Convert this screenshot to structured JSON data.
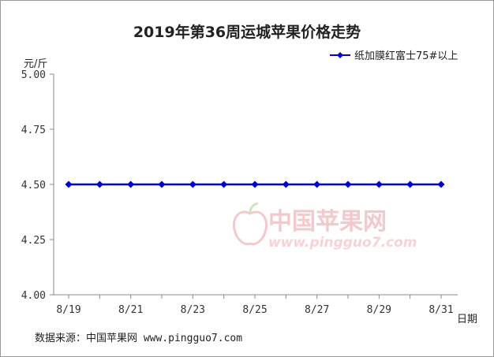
{
  "chart_data": {
    "type": "line",
    "title": "2019年第36周运城苹果价格走势",
    "ylabel": "元/斤",
    "xlabel": "日期",
    "ylim": [
      4.0,
      5.0
    ],
    "yticks": [
      "4.00",
      "4.25",
      "4.50",
      "4.75",
      "5.00"
    ],
    "categories": [
      "8/19",
      "8/20",
      "8/21",
      "8/22",
      "8/23",
      "8/24",
      "8/25",
      "8/26",
      "8/27",
      "8/28",
      "8/29",
      "8/30",
      "8/31"
    ],
    "xtick_labels": [
      "8/19",
      "8/21",
      "8/23",
      "8/25",
      "8/27",
      "8/29",
      "8/31"
    ],
    "series": [
      {
        "name": "纸加膜红富士75#以上",
        "values": [
          4.5,
          4.5,
          4.5,
          4.5,
          4.5,
          4.5,
          4.5,
          4.5,
          4.5,
          4.5,
          4.5,
          4.5,
          4.5
        ],
        "color": "#0000cc"
      }
    ],
    "legend": "top-right",
    "grid": false
  },
  "source_text": "数据来源：中国苹果网 www.pingguo7.com",
  "watermark": {
    "name": "中国苹果网",
    "url": "www.pingguo7.com"
  },
  "colors": {
    "line": "#0000cc",
    "axis": "#888888",
    "watermark": "#f3c9cd"
  }
}
